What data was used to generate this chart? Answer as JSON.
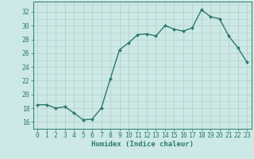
{
  "x": [
    0,
    1,
    2,
    3,
    4,
    5,
    6,
    7,
    8,
    9,
    10,
    11,
    12,
    13,
    14,
    15,
    16,
    17,
    18,
    19,
    20,
    21,
    22,
    23
  ],
  "y": [
    18.5,
    18.5,
    18.0,
    18.2,
    17.3,
    16.3,
    16.4,
    18.0,
    22.3,
    26.5,
    27.5,
    28.7,
    28.8,
    28.5,
    30.0,
    29.5,
    29.2,
    29.7,
    32.3,
    31.3,
    31.0,
    28.5,
    26.8,
    24.7
  ],
  "line_color": "#2d7a6e",
  "marker": "D",
  "marker_size": 2.0,
  "linewidth": 1.0,
  "xlabel": "Humidex (Indice chaleur)",
  "xlim": [
    -0.5,
    23.5
  ],
  "ylim": [
    15.0,
    33.5
  ],
  "yticks": [
    16,
    18,
    20,
    22,
    24,
    26,
    28,
    30,
    32
  ],
  "xticks": [
    0,
    1,
    2,
    3,
    4,
    5,
    6,
    7,
    8,
    9,
    10,
    11,
    12,
    13,
    14,
    15,
    16,
    17,
    18,
    19,
    20,
    21,
    22,
    23
  ],
  "bg_color": "#cce9e5",
  "grid_color": "#c0d8d4",
  "line_grid_color": "#b8d0cc",
  "tick_color": "#2d7a6e",
  "xlabel_fontsize": 6.5,
  "tick_fontsize": 5.8
}
